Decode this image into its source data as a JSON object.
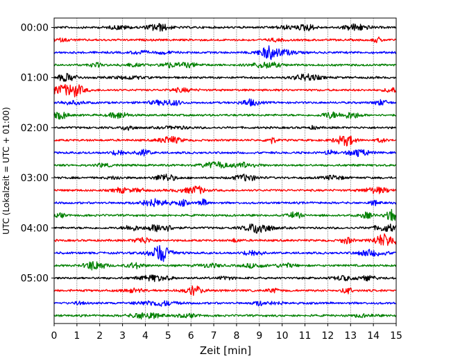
{
  "chart_data": {
    "type": "line",
    "title": "",
    "xlabel": "Zeit  [min]",
    "ylabel": "UTC (Lokalzeit = UTC + 01:00)",
    "xlim": [
      0,
      15
    ],
    "x_ticks": [
      "0",
      "1",
      "2",
      "3",
      "4",
      "5",
      "6",
      "7",
      "8",
      "9",
      "10",
      "11",
      "12",
      "13",
      "14",
      "15"
    ],
    "y_ticks": [
      "00:00",
      "01:00",
      "02:00",
      "03:00",
      "04:00",
      "05:00"
    ],
    "row_interval_min": 15,
    "row_count": 24,
    "row_colors": [
      "#000000",
      "#ff0000",
      "#0000ff",
      "#008000"
    ],
    "grid": "vertical dotted lines at each minute",
    "series": [
      {
        "start": "00:00",
        "color": "#000000"
      },
      {
        "start": "00:15",
        "color": "#ff0000"
      },
      {
        "start": "00:30",
        "color": "#0000ff"
      },
      {
        "start": "00:45",
        "color": "#008000"
      },
      {
        "start": "01:00",
        "color": "#000000"
      },
      {
        "start": "01:15",
        "color": "#ff0000"
      },
      {
        "start": "01:30",
        "color": "#0000ff"
      },
      {
        "start": "01:45",
        "color": "#008000"
      },
      {
        "start": "02:00",
        "color": "#000000"
      },
      {
        "start": "02:15",
        "color": "#ff0000"
      },
      {
        "start": "02:30",
        "color": "#0000ff"
      },
      {
        "start": "02:45",
        "color": "#008000"
      },
      {
        "start": "03:00",
        "color": "#000000"
      },
      {
        "start": "03:15",
        "color": "#ff0000"
      },
      {
        "start": "03:30",
        "color": "#0000ff"
      },
      {
        "start": "03:45",
        "color": "#008000"
      },
      {
        "start": "04:00",
        "color": "#000000"
      },
      {
        "start": "04:15",
        "color": "#ff0000"
      },
      {
        "start": "04:30",
        "color": "#0000ff"
      },
      {
        "start": "04:45",
        "color": "#008000"
      },
      {
        "start": "05:00",
        "color": "#000000"
      },
      {
        "start": "05:15",
        "color": "#ff0000"
      },
      {
        "start": "05:30",
        "color": "#0000ff"
      },
      {
        "start": "05:45",
        "color": "#008000"
      }
    ]
  }
}
